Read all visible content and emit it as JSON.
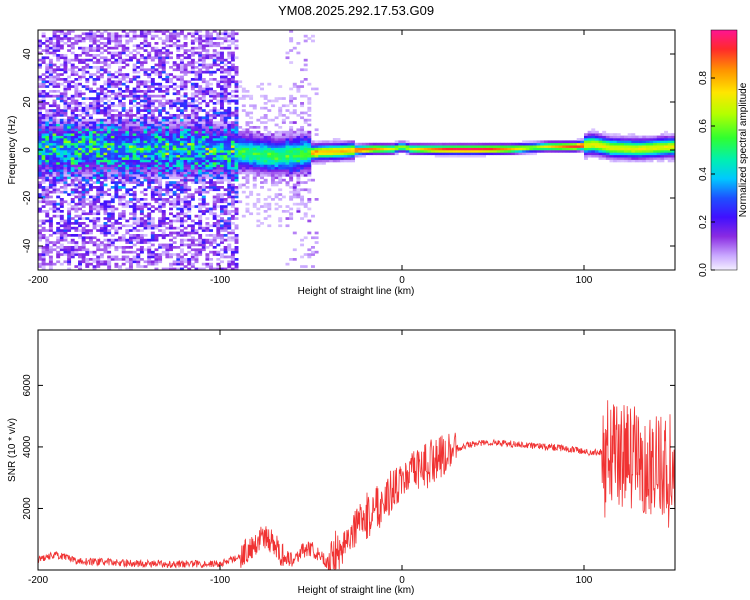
{
  "chart_data": [
    {
      "type": "heatmap",
      "title": "YM08.2025.292.17.53.G09",
      "xlabel": "Height of straight line (km)",
      "ylabel": "Frequency (Hz)",
      "xlim": [
        -200,
        150
      ],
      "ylim": [
        -50,
        50
      ],
      "xticks": [
        -200,
        -100,
        0,
        100
      ],
      "xtick_labels": [
        "-200",
        "-100",
        "0",
        "100"
      ],
      "yticks": [
        -40,
        -20,
        0,
        20,
        40
      ],
      "ytick_labels": [
        "-40",
        "-20",
        "0",
        "20",
        "40"
      ],
      "colorbar": {
        "label": "Normalized spectral amplitude",
        "range": [
          0,
          1
        ],
        "ticks": [
          0.0,
          0.2,
          0.4,
          0.6,
          0.8
        ],
        "tick_labels": [
          "0.0",
          "0.2",
          "0.4",
          "0.6",
          "0.8"
        ],
        "colormap": "rainbow (white-lavender to magenta/red)"
      },
      "ridge": {
        "description": "peak frequency track vs height",
        "x": [
          -200,
          -150,
          -100,
          -85,
          -70,
          -55,
          -45,
          -35,
          -25,
          -15,
          -5,
          0,
          5,
          20,
          40,
          60,
          80,
          95,
          105,
          115,
          130,
          150
        ],
        "y": [
          1.0,
          0.5,
          0.0,
          -1.0,
          -2.5,
          -1.5,
          -0.8,
          -0.5,
          0.0,
          0.5,
          0.5,
          1.5,
          0.5,
          0.3,
          0.3,
          0.5,
          1.5,
          1.5,
          2.5,
          1.0,
          0.5,
          1.5
        ]
      },
      "grid": false
    },
    {
      "type": "line",
      "xlabel": "Height of straight line (km)",
      "ylabel": "SNR (10 * v/v)",
      "xlim": [
        -200,
        150
      ],
      "ylim": [
        0,
        7800
      ],
      "xticks": [
        -200,
        -100,
        0,
        100
      ],
      "xtick_labels": [
        "-200",
        "-100",
        "0",
        "100"
      ],
      "yticks": [
        2000,
        4000,
        6000
      ],
      "ytick_labels": [
        "2000",
        "4000",
        "6000"
      ],
      "color": "#f03232",
      "series": [
        {
          "x": [
            -200,
            -190,
            -180,
            -160,
            -140,
            -120,
            -100,
            -90,
            -80,
            -75,
            -70,
            -65,
            -60,
            -55,
            -50,
            -45,
            -40,
            -35,
            -30,
            -25,
            -20,
            -15,
            -10,
            -5,
            0,
            5,
            10,
            15,
            20,
            25,
            30,
            35,
            40,
            50,
            60,
            70,
            80,
            90,
            100,
            105,
            110,
            115,
            120,
            130,
            140,
            150
          ],
          "y": [
            350,
            500,
            300,
            250,
            200,
            200,
            200,
            400,
            900,
            1100,
            800,
            450,
            350,
            600,
            700,
            400,
            200,
            700,
            1000,
            1400,
            1700,
            2000,
            2300,
            2600,
            2900,
            3100,
            3300,
            3500,
            3600,
            3800,
            3950,
            4050,
            4100,
            4150,
            4100,
            4050,
            4000,
            3950,
            3850,
            3800,
            3850,
            3800,
            3700,
            3600,
            3400,
            3500
          ]
        }
      ],
      "grid": false
    }
  ]
}
